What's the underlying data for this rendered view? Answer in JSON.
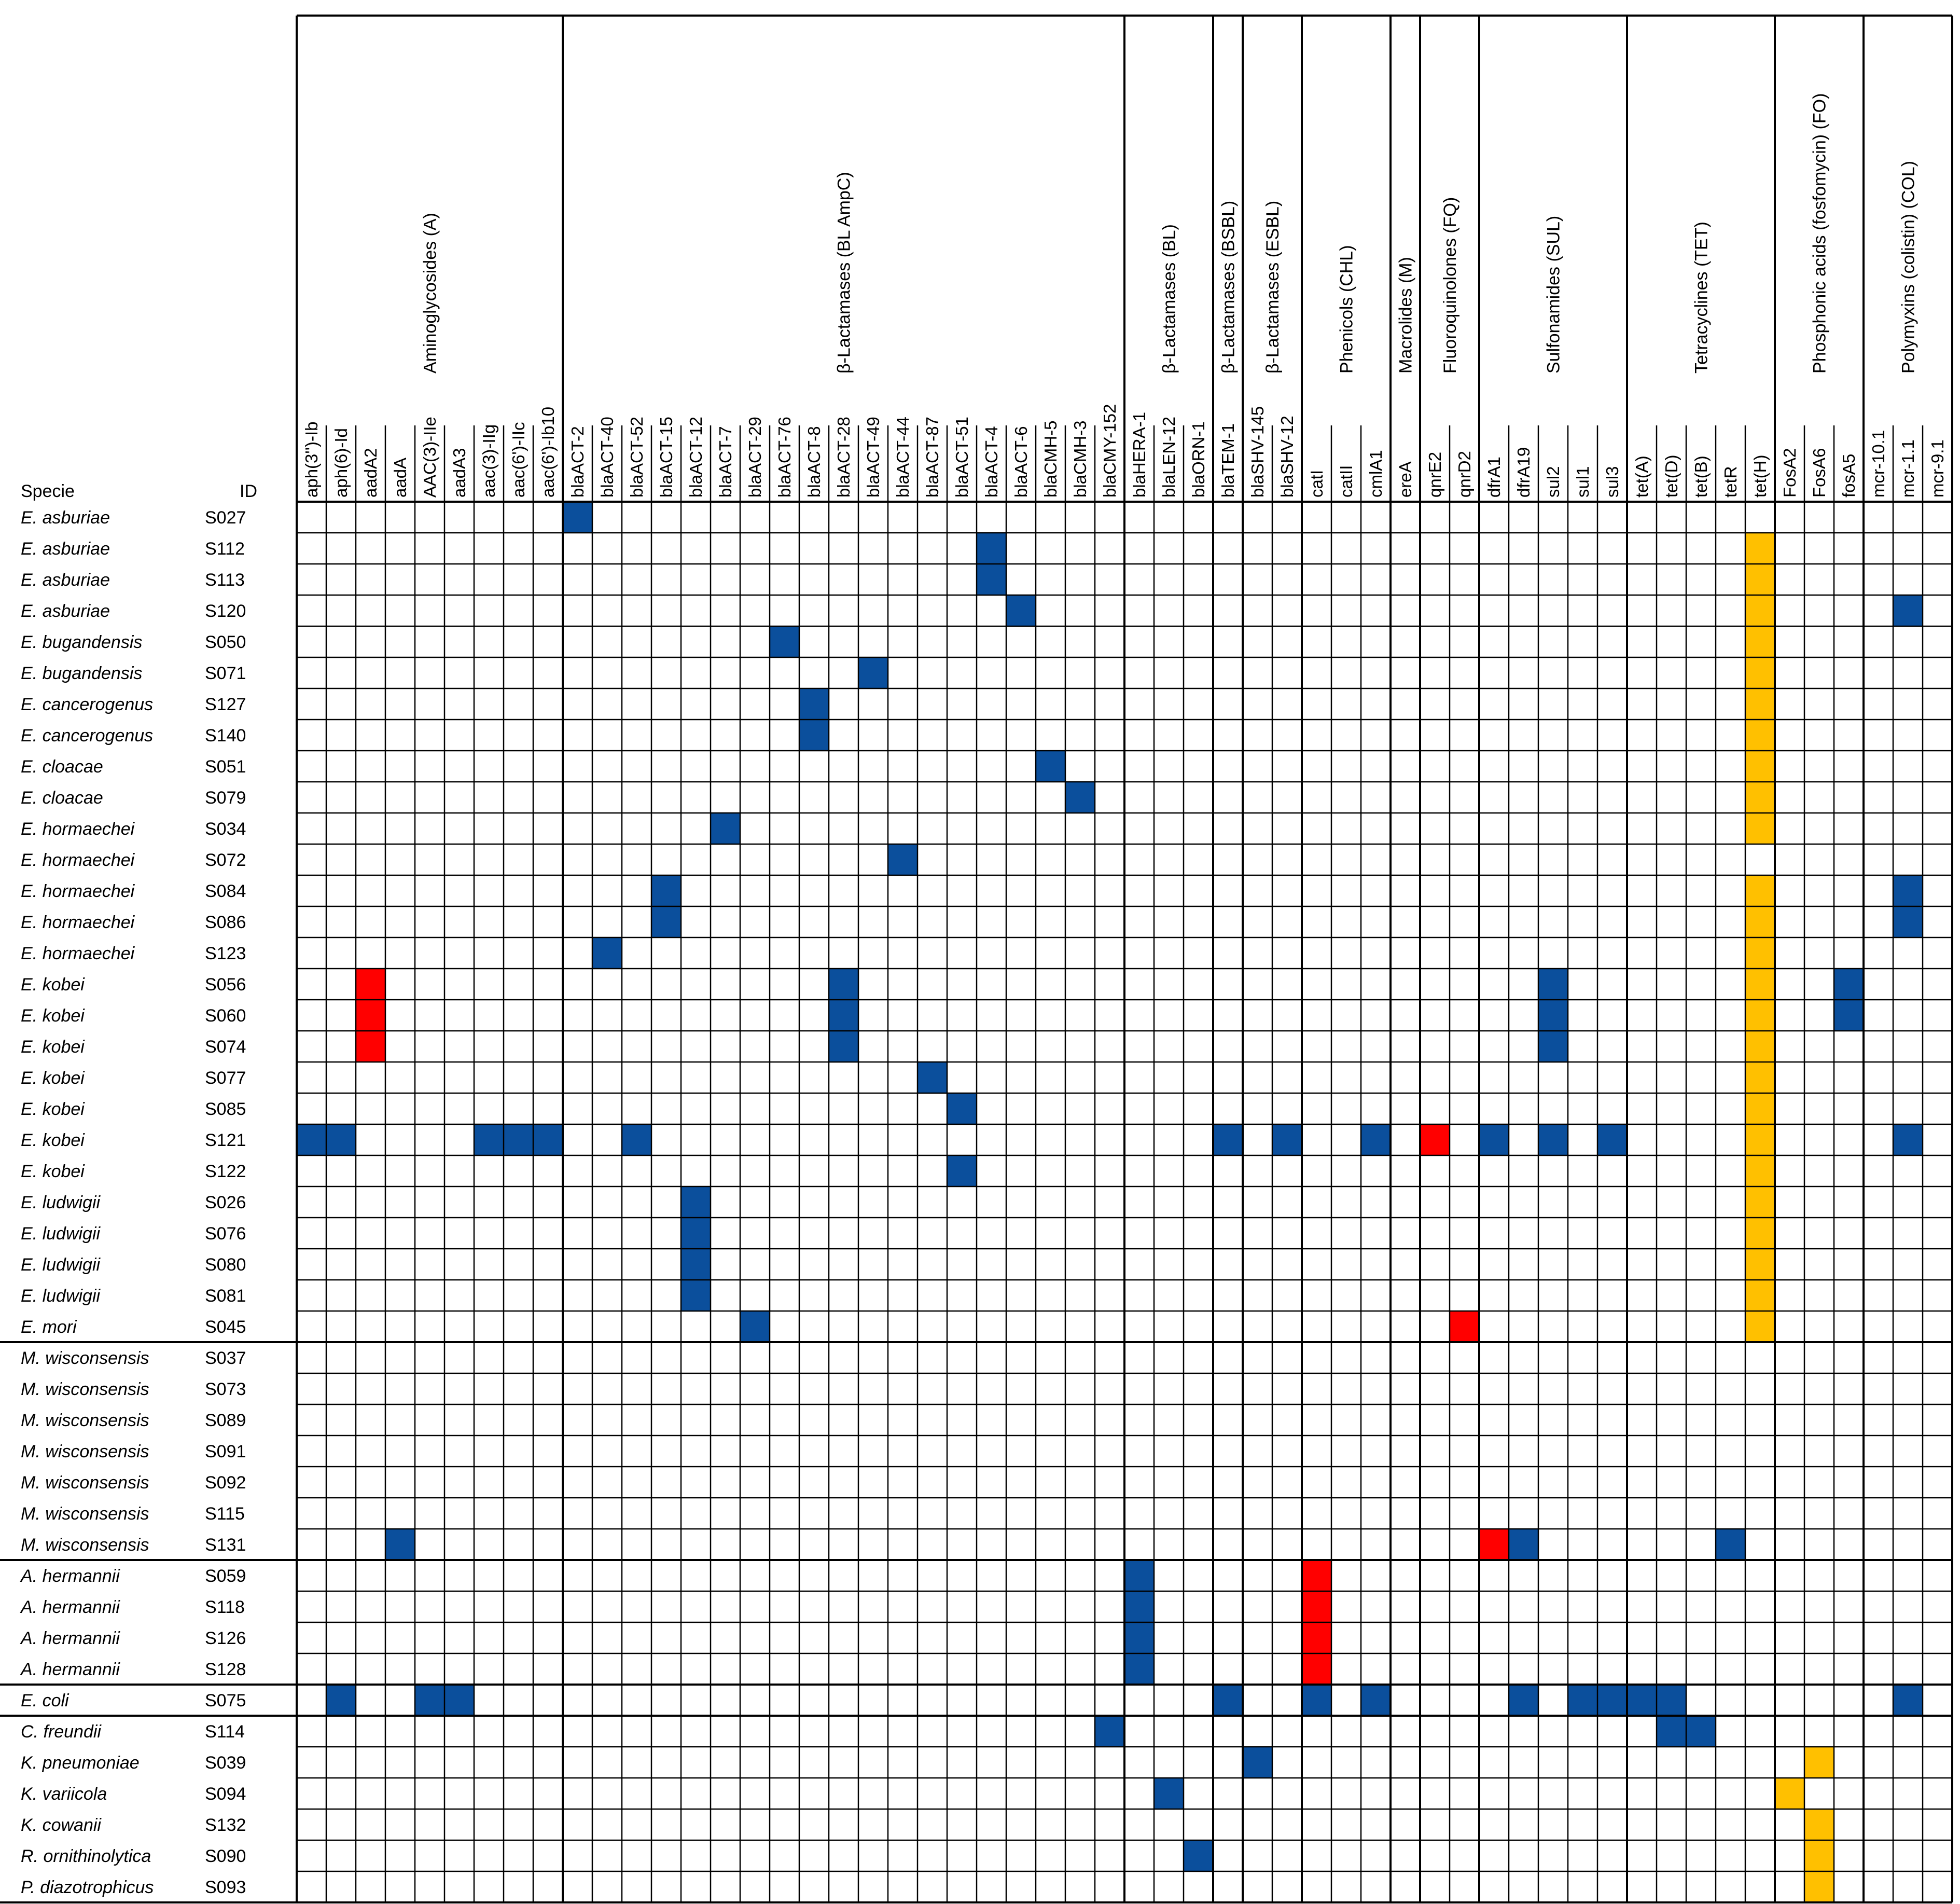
{
  "chart_data": {
    "type": "heatmap",
    "title": "",
    "header": {
      "specie": "Specie",
      "id": "ID"
    },
    "groups": [
      {
        "label": "Aminoglycosides (A)",
        "genes": [
          "aph(3'')-Ib",
          "aph(6)-Id",
          "aadA2",
          "aadA",
          "AAC(3)-IIe",
          "aadA3",
          "aac(3)-IIg",
          "aac(6')-IIc",
          "aac(6')-Ib10"
        ]
      },
      {
        "label": "β-Lactamases (BL AmpC)",
        "genes": [
          "blaACT-2",
          "blaACT-40",
          "blaACT-52",
          "blaACT-15",
          "blaACT-12",
          "blaACT-7",
          "blaACT-29",
          "blaACT-76",
          "blaACT-8",
          "blaACT-28",
          "blaACT-49",
          "blaACT-44",
          "blaACT-87",
          "blaACT-51",
          "blaACT-4",
          "blaACT-6",
          "blaCMH-5",
          "blaCMH-3",
          "blaCMY-152"
        ]
      },
      {
        "label": "β-Lactamases  (BL)",
        "genes": [
          "blaHERA-1",
          "blaLEN-12",
          "blaORN-1"
        ]
      },
      {
        "label": "β-Lactamases  (BSBL)",
        "genes": [
          "blaTEM-1"
        ]
      },
      {
        "label": "β-Lactamases  (ESBL)",
        "genes": [
          "blaSHV-145",
          "blaSHV-12"
        ]
      },
      {
        "label": "Phenicols (CHL)",
        "genes": [
          "catI",
          "catII",
          "cmlA1"
        ]
      },
      {
        "label": "Macrolides (M)",
        "genes": [
          "ereA"
        ]
      },
      {
        "label": "Fluoroquinolones (FQ)",
        "genes": [
          "qnrE2",
          "qnrD2"
        ]
      },
      {
        "label": "Sulfonamides (SUL)",
        "genes": [
          "dfrA1",
          "dfrA19",
          "sul2",
          "sul1",
          "sul3"
        ]
      },
      {
        "label": "Tetracyclines (TET)",
        "genes": [
          "tet(A)",
          "tet(D)",
          "tet(B)",
          "tetR",
          "tet(H)"
        ]
      },
      {
        "label": "Phosphonic acids (fosfomycin) (FO)",
        "genes": [
          "FosA2",
          "FosA6",
          "fosA5"
        ]
      },
      {
        "label": "Polymyxins (colistin) (COL)",
        "genes": [
          "mcr-10.1",
          "mcr-1.1",
          "mcr-9.1"
        ]
      }
    ],
    "rows": [
      {
        "species": "E. asburiae",
        "id": "S027",
        "blue": [
          9
        ],
        "red": [],
        "yellow": []
      },
      {
        "species": "E. asburiae",
        "id": "S112",
        "blue": [
          23
        ],
        "red": [],
        "yellow": [
          49
        ]
      },
      {
        "species": "E. asburiae",
        "id": "S113",
        "blue": [
          23
        ],
        "red": [],
        "yellow": [
          49
        ]
      },
      {
        "species": "E. asburiae",
        "id": "S120",
        "blue": [
          24,
          54
        ],
        "red": [],
        "yellow": [
          49
        ]
      },
      {
        "species": "E. bugandensis",
        "id": "S050",
        "blue": [
          16
        ],
        "red": [],
        "yellow": [
          49
        ]
      },
      {
        "species": "E. bugandensis",
        "id": "S071",
        "blue": [
          19
        ],
        "red": [],
        "yellow": [
          49
        ]
      },
      {
        "species": "E. cancerogenus",
        "id": "S127",
        "blue": [
          17
        ],
        "red": [],
        "yellow": [
          49
        ]
      },
      {
        "species": "E. cancerogenus",
        "id": "S140",
        "blue": [
          17
        ],
        "red": [],
        "yellow": [
          49
        ]
      },
      {
        "species": "E. cloacae",
        "id": "S051",
        "blue": [
          25
        ],
        "red": [],
        "yellow": [
          49
        ]
      },
      {
        "species": "E. cloacae",
        "id": "S079",
        "blue": [
          26
        ],
        "red": [],
        "yellow": [
          49
        ]
      },
      {
        "species": "E. hormaechei",
        "id": "S034",
        "blue": [
          14
        ],
        "red": [],
        "yellow": [
          49
        ]
      },
      {
        "species": "E. hormaechei",
        "id": "S072",
        "blue": [
          20
        ],
        "red": [],
        "yellow": []
      },
      {
        "species": "E. hormaechei",
        "id": "S084",
        "blue": [
          12,
          54
        ],
        "red": [],
        "yellow": [
          49
        ]
      },
      {
        "species": "E. hormaechei",
        "id": "S086",
        "blue": [
          12,
          54
        ],
        "red": [],
        "yellow": [
          49
        ]
      },
      {
        "species": "E. hormaechei",
        "id": "S123",
        "blue": [
          10
        ],
        "red": [],
        "yellow": [
          49
        ]
      },
      {
        "species": "E. kobei",
        "id": "S056",
        "blue": [
          18,
          42,
          52
        ],
        "red": [
          2
        ],
        "yellow": [
          49
        ]
      },
      {
        "species": "E. kobei",
        "id": "S060",
        "blue": [
          18,
          42,
          52
        ],
        "red": [
          2
        ],
        "yellow": [
          49
        ]
      },
      {
        "species": "E. kobei",
        "id": "S074",
        "blue": [
          18,
          42
        ],
        "red": [
          2
        ],
        "yellow": [
          49
        ]
      },
      {
        "species": "E. kobei",
        "id": "S077",
        "blue": [
          21
        ],
        "red": [],
        "yellow": [
          49
        ]
      },
      {
        "species": "E. kobei",
        "id": "S085",
        "blue": [
          22
        ],
        "red": [],
        "yellow": [
          49
        ]
      },
      {
        "species": "E. kobei",
        "id": "S121",
        "blue": [
          0,
          1,
          6,
          7,
          8,
          11,
          31,
          33,
          36,
          40,
          42,
          44,
          54
        ],
        "red": [
          38
        ],
        "yellow": [
          49
        ]
      },
      {
        "species": "E. kobei",
        "id": "S122",
        "blue": [
          22
        ],
        "red": [],
        "yellow": [
          49
        ]
      },
      {
        "species": "E. ludwigii",
        "id": "S026",
        "blue": [
          13
        ],
        "red": [],
        "yellow": [
          49
        ]
      },
      {
        "species": "E. ludwigii",
        "id": "S076",
        "blue": [
          13
        ],
        "red": [],
        "yellow": [
          49
        ]
      },
      {
        "species": "E. ludwigii",
        "id": "S080",
        "blue": [
          13
        ],
        "red": [],
        "yellow": [
          49
        ]
      },
      {
        "species": "E. ludwigii",
        "id": "S081",
        "blue": [
          13
        ],
        "red": [],
        "yellow": [
          49
        ]
      },
      {
        "species": "E. mori",
        "id": "S045",
        "blue": [
          15
        ],
        "red": [
          39
        ],
        "yellow": [
          49
        ]
      },
      {
        "species": "M. wisconsensis",
        "id": "S037",
        "blue": [],
        "red": [],
        "yellow": []
      },
      {
        "species": "M. wisconsensis",
        "id": "S073",
        "blue": [],
        "red": [],
        "yellow": []
      },
      {
        "species": "M. wisconsensis",
        "id": "S089",
        "blue": [],
        "red": [],
        "yellow": []
      },
      {
        "species": "M. wisconsensis",
        "id": "S091",
        "blue": [],
        "red": [],
        "yellow": []
      },
      {
        "species": "M. wisconsensis",
        "id": "S092",
        "blue": [],
        "red": [],
        "yellow": []
      },
      {
        "species": "M. wisconsensis",
        "id": "S115",
        "blue": [],
        "red": [],
        "yellow": []
      },
      {
        "species": "M. wisconsensis",
        "id": "S131",
        "blue": [
          3,
          41,
          48
        ],
        "red": [
          40
        ],
        "yellow": []
      },
      {
        "species": "A. hermannii",
        "id": "S059",
        "blue": [
          28
        ],
        "red": [
          34
        ],
        "yellow": []
      },
      {
        "species": "A. hermannii",
        "id": "S118",
        "blue": [
          28
        ],
        "red": [
          34
        ],
        "yellow": []
      },
      {
        "species": "A. hermannii",
        "id": "S126",
        "blue": [
          28
        ],
        "red": [
          34
        ],
        "yellow": []
      },
      {
        "species": "A. hermannii",
        "id": "S128",
        "blue": [
          28
        ],
        "red": [
          34
        ],
        "yellow": []
      },
      {
        "species": "E. coli",
        "id": "S075",
        "blue": [
          1,
          4,
          5,
          31,
          34,
          36,
          41,
          43,
          44,
          45,
          46,
          54
        ],
        "red": [],
        "yellow": []
      },
      {
        "species": "C. freundii",
        "id": "S114",
        "blue": [
          27,
          46,
          47
        ],
        "red": [],
        "yellow": []
      },
      {
        "species": "K. pneumoniae",
        "id": "S039",
        "blue": [
          32
        ],
        "red": [],
        "yellow": [
          51
        ]
      },
      {
        "species": "K. variicola",
        "id": "S094",
        "blue": [
          29
        ],
        "red": [],
        "yellow": [
          50
        ]
      },
      {
        "species": "K. cowanii",
        "id": "S132",
        "blue": [],
        "red": [],
        "yellow": [
          51
        ]
      },
      {
        "species": "R. ornithinolytica",
        "id": "S090",
        "blue": [
          30
        ],
        "red": [],
        "yellow": [
          51
        ]
      },
      {
        "species": "P. diazotrophicus",
        "id": "S093",
        "blue": [],
        "red": [],
        "yellow": [
          51
        ]
      }
    ],
    "row_group_breaks_after": [
      26,
      33,
      37,
      38
    ],
    "colors": {
      "blue": "#0b4f9c",
      "red": "#ff0000",
      "yellow": "#ffc000",
      "grid": "#000000"
    }
  }
}
